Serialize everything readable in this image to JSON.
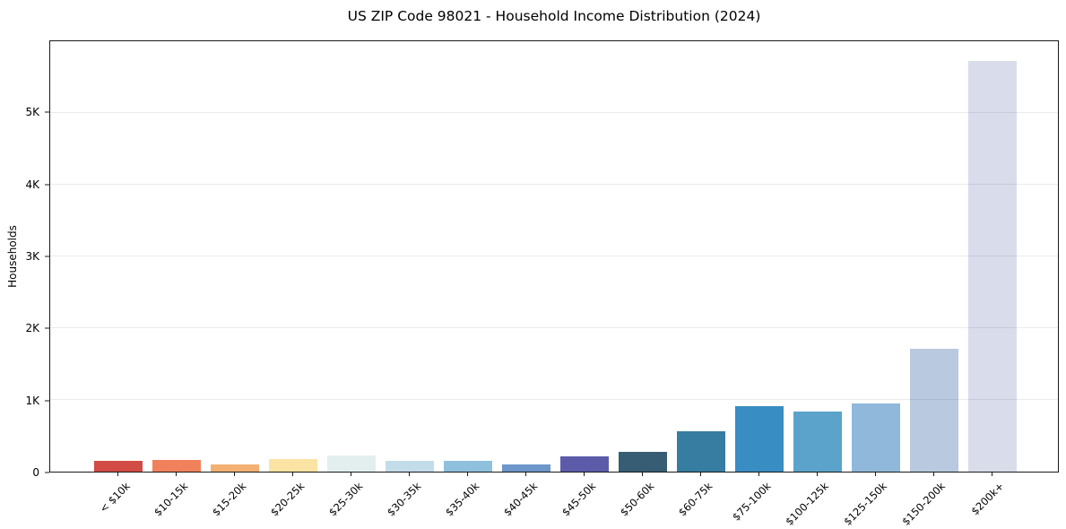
{
  "title": "US ZIP Code 98021 - Household Income Distribution (2024)",
  "chart_data": {
    "type": "bar",
    "title": "US ZIP Code 98021 - Household Income Distribution (2024)",
    "xlabel": "",
    "ylabel": "Households",
    "ylim": [
      0,
      6000
    ],
    "grid": "horizontal-only",
    "legend": "none",
    "categories": [
      "< $10k",
      "$10-15k",
      "$15-20k",
      "$20-25k",
      "$25-30k",
      "$30-35k",
      "$35-40k",
      "$40-45k",
      "$45-50k",
      "$50-60k",
      "$60-75k",
      "$75-100k",
      "$100-125k",
      "$125-150k",
      "$150-200k",
      "$200k+"
    ],
    "values": [
      150,
      160,
      100,
      170,
      220,
      150,
      145,
      105,
      210,
      270,
      560,
      910,
      840,
      950,
      1715,
      5720
    ],
    "bar_colors": [
      "#d24b44",
      "#f0815b",
      "#f2b173",
      "#fbe3a3",
      "#e2efee",
      "#c3dcea",
      "#8fc0dd",
      "#6d96ca",
      "#5c5baa",
      "#365d73",
      "#367da1",
      "#388dc2",
      "#5ba3cb",
      "#8fb8da",
      "#b8c9e0",
      "#d9dcea"
    ],
    "y_ticks": [
      {
        "value": 0,
        "label": "0"
      },
      {
        "value": 1000,
        "label": "1K"
      },
      {
        "value": 2000,
        "label": "2K"
      },
      {
        "value": 3000,
        "label": "3K"
      },
      {
        "value": 4000,
        "label": "4K"
      },
      {
        "value": 5000,
        "label": "5K"
      }
    ]
  }
}
